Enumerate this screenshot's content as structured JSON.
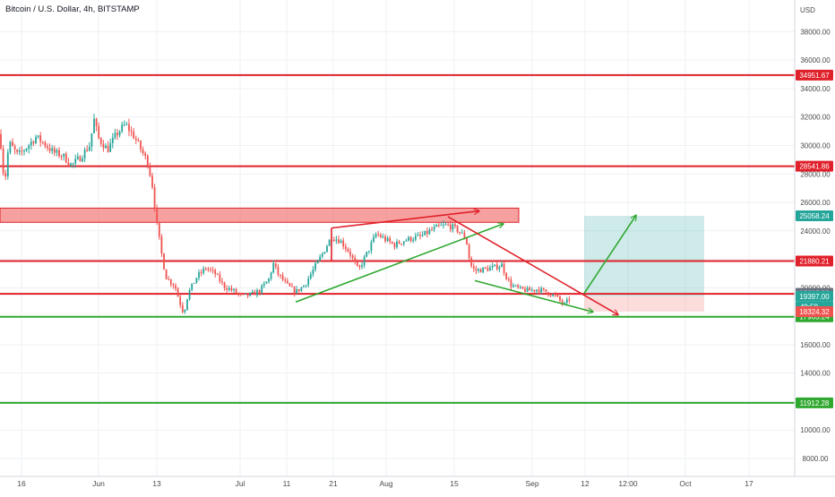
{
  "header": {
    "title": "Bitcoin / U.S. Dollar, 4h, BITSTAMP"
  },
  "colors": {
    "up": "#26a69a",
    "down": "#ef5350",
    "red_line": "#e0202a",
    "green_line": "#2fa82f",
    "grid": "#eef0f3",
    "text": "#4a4a4a"
  },
  "chart_data": {
    "type": "candlestick",
    "y_unit_label": "USD",
    "y_ticks": [
      8000,
      10000,
      12000,
      14000,
      16000,
      18000,
      20000,
      22000,
      24000,
      26000,
      28000,
      30000,
      32000,
      34000,
      36000,
      38000
    ],
    "y_tick_labels": [
      "8000.00",
      "10000.00",
      "12000.00",
      "14000.00",
      "16000.00",
      "18000.00",
      "20000.00",
      "22000.00",
      "24000.00",
      "26000.00",
      "28000.00",
      "30000.00",
      "32000.00",
      "34000.00",
      "36000.00",
      "38000.00"
    ],
    "ylim": [
      7400,
      39600
    ],
    "x_ticks": [
      "16",
      "Jun",
      "13",
      "Jul",
      "11",
      "21",
      "Aug",
      "15",
      "Sep",
      "12",
      "12:00",
      "Oct",
      "17"
    ],
    "horizontal_levels": [
      {
        "value": 34951.67,
        "label": "34951.67",
        "color": "red"
      },
      {
        "value": 28541.86,
        "label": "28541.86",
        "color": "red"
      },
      {
        "value": 21880.21,
        "label": "21880.21",
        "color": "red"
      },
      {
        "value": 19572.12,
        "label": "19572.12",
        "color": "red"
      },
      {
        "value": 17963.24,
        "label": "17963.24",
        "color": "green"
      },
      {
        "value": 11912.28,
        "label": "11912.28",
        "color": "green"
      }
    ],
    "price_tags": [
      {
        "value": 25058.24,
        "label": "25058.24",
        "color": "#26a69a"
      },
      {
        "value": 19612.23,
        "label": "19612.23",
        "color": "#6b7280"
      },
      {
        "value": 19397.0,
        "label": "19397.00",
        "sub": "49:59",
        "color": "#26a69a"
      },
      {
        "value": 18324.32,
        "label": "18324.32",
        "color": "#ef5350"
      }
    ],
    "resistance_zone": {
      "low": 24600,
      "high": 25600
    },
    "position": {
      "entry": 19397,
      "target": 25058.24,
      "stop": 18324.32
    },
    "price_path": [
      [
        0,
        30800
      ],
      [
        5,
        27200
      ],
      [
        10,
        30200
      ],
      [
        20,
        29300
      ],
      [
        30,
        29900
      ],
      [
        40,
        30600
      ],
      [
        50,
        30100
      ],
      [
        60,
        29500
      ],
      [
        70,
        29300
      ],
      [
        80,
        28600
      ],
      [
        90,
        29200
      ],
      [
        100,
        30000
      ],
      [
        105,
        31800
      ],
      [
        110,
        30500
      ],
      [
        120,
        29700
      ],
      [
        130,
        30800
      ],
      [
        140,
        31500
      ],
      [
        150,
        30600
      ],
      [
        160,
        29400
      ],
      [
        165,
        28800
      ],
      [
        170,
        27200
      ],
      [
        175,
        24500
      ],
      [
        180,
        22500
      ],
      [
        185,
        20800
      ],
      [
        190,
        20400
      ],
      [
        195,
        20200
      ],
      [
        200,
        19100
      ],
      [
        205,
        18200
      ],
      [
        210,
        19600
      ],
      [
        220,
        20800
      ],
      [
        230,
        21400
      ],
      [
        240,
        21000
      ],
      [
        250,
        20100
      ],
      [
        260,
        19800
      ],
      [
        270,
        19400
      ],
      [
        280,
        19500
      ],
      [
        290,
        19800
      ],
      [
        300,
        20600
      ],
      [
        305,
        21700
      ],
      [
        310,
        21000
      ],
      [
        320,
        20200
      ],
      [
        330,
        19700
      ],
      [
        340,
        20200
      ],
      [
        350,
        21300
      ],
      [
        360,
        22400
      ],
      [
        370,
        23600
      ],
      [
        380,
        23300
      ],
      [
        390,
        22500
      ],
      [
        400,
        21200
      ],
      [
        410,
        22500
      ],
      [
        420,
        23800
      ],
      [
        430,
        23400
      ],
      [
        440,
        23000
      ],
      [
        450,
        23300
      ],
      [
        460,
        23500
      ],
      [
        470,
        23600
      ],
      [
        480,
        24000
      ],
      [
        490,
        24300
      ],
      [
        500,
        24400
      ],
      [
        510,
        24100
      ],
      [
        520,
        23500
      ],
      [
        525,
        21600
      ],
      [
        530,
        21200
      ],
      [
        540,
        21300
      ],
      [
        550,
        21400
      ],
      [
        560,
        21600
      ],
      [
        565,
        20800
      ],
      [
        570,
        20200
      ],
      [
        580,
        19900
      ],
      [
        590,
        19800
      ],
      [
        600,
        19900
      ],
      [
        610,
        19700
      ],
      [
        620,
        19400
      ],
      [
        630,
        18800
      ],
      [
        638,
        19400
      ]
    ],
    "trendlines": [
      {
        "color": "red",
        "arrow": true,
        "points": [
          [
            370,
            24200
          ],
          [
            535,
            25400
          ]
        ]
      },
      {
        "color": "red",
        "arrow": false,
        "points": [
          [
            370,
            24200
          ],
          [
            370,
            21900
          ]
        ]
      },
      {
        "color": "green",
        "arrow": true,
        "points": [
          [
            330,
            19000
          ],
          [
            562,
            24500
          ]
        ]
      },
      {
        "color": "red",
        "arrow": true,
        "points": [
          [
            500,
            25000
          ],
          [
            690,
            18100
          ]
        ]
      },
      {
        "color": "green",
        "arrow": true,
        "points": [
          [
            530,
            20500
          ],
          [
            662,
            18300
          ]
        ]
      },
      {
        "color": "green",
        "arrow": true,
        "points": [
          [
            652,
            19600
          ],
          [
            710,
            25100
          ]
        ]
      }
    ]
  }
}
